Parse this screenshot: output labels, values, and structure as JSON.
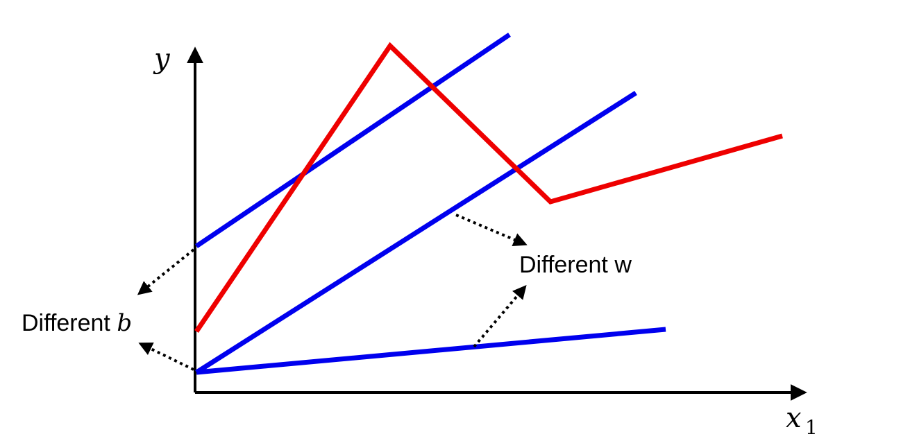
{
  "axes": {
    "y_label": "y",
    "x_label": "x",
    "x_subscript": "1"
  },
  "annotations": {
    "different_b_text": "Different ",
    "different_b_var": "b",
    "different_w_text": "Different w"
  },
  "colors": {
    "linear_lines": "#0000ee",
    "piecewise_curve": "#ee0000",
    "axes": "#000000"
  }
}
